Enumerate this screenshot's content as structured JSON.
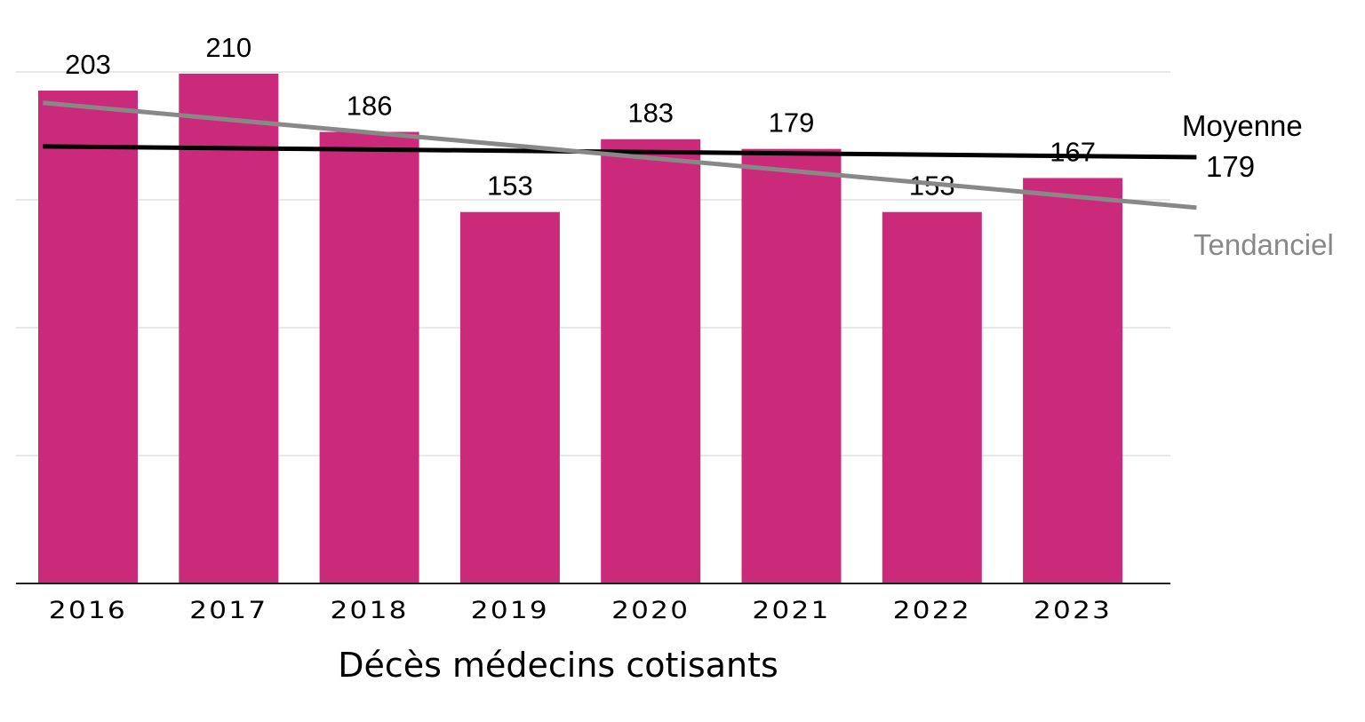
{
  "chart_data": {
    "type": "bar",
    "title": "Décès médecins cotisants",
    "xlabel": "",
    "ylabel": "",
    "categories": [
      "2016",
      "2017",
      "2018",
      "2019",
      "2020",
      "2021",
      "2022",
      "2023"
    ],
    "values": [
      203,
      210,
      186,
      153,
      183,
      179,
      153,
      167
    ],
    "ylim": [
      0,
      210.7
    ],
    "grid": true,
    "bar_color": "#CB2A7B",
    "reference_lines": [
      {
        "name": "Moyenne",
        "value_label": "179",
        "color": "#000000",
        "x_from": -0.32,
        "x_to": 7.88,
        "y_from": 180,
        "y_to": 175.6
      },
      {
        "name": "Tendanciel",
        "color": "#888888",
        "x_from": -0.32,
        "x_to": 7.88,
        "y_from": 198,
        "y_to": 154.8
      }
    ]
  }
}
